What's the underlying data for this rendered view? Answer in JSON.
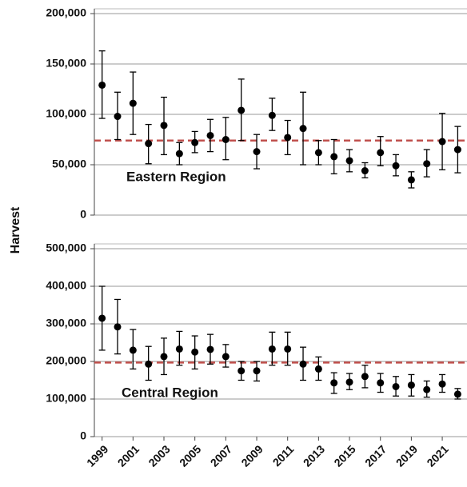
{
  "chart_data": [
    {
      "type": "scatter",
      "ylabel": "Harvest",
      "annotation": "Eastern Region",
      "x": [
        1999,
        2000,
        2001,
        2002,
        2003,
        2004,
        2005,
        2006,
        2007,
        2008,
        2009,
        2010,
        2011,
        2012,
        2013,
        2014,
        2015,
        2016,
        2017,
        2018,
        2019,
        2020,
        2021,
        2022
      ],
      "xlim": [
        1998.5,
        2022.6
      ],
      "series": [
        {
          "color": "#000000",
          "values": [
            129000,
            98000,
            111000,
            71000,
            89000,
            61000,
            72000,
            79000,
            75000,
            104000,
            63000,
            99000,
            77000,
            86000,
            62000,
            58000,
            54000,
            44000,
            62000,
            49000,
            35000,
            51000,
            73000,
            65000
          ],
          "lower": [
            96000,
            75000,
            80000,
            51000,
            60000,
            50000,
            62000,
            63000,
            55000,
            74000,
            46000,
            84000,
            60000,
            50000,
            50000,
            41000,
            43000,
            37000,
            49000,
            39000,
            27000,
            38000,
            45000,
            42000
          ],
          "upper": [
            163000,
            122000,
            142000,
            90000,
            117000,
            72000,
            83000,
            95000,
            97000,
            135000,
            80000,
            116000,
            94000,
            122000,
            74000,
            75000,
            65000,
            52000,
            78000,
            60000,
            43000,
            65000,
            101000,
            88000
          ]
        }
      ],
      "reference_line": {
        "value": 74000,
        "color": "#c0504d",
        "dashed": true
      },
      "ylim": [
        0,
        200000
      ],
      "yticks": [
        0,
        {
          "value": 50000,
          "label": "50,000"
        },
        {
          "value": 100000,
          "label": "100,000"
        },
        {
          "value": 150000,
          "label": "150,000"
        },
        {
          "value": 200000,
          "label": "200,000"
        }
      ],
      "grid": true
    },
    {
      "type": "scatter",
      "annotation": "Central Region",
      "x": [
        1999,
        2000,
        2001,
        2002,
        2003,
        2004,
        2005,
        2006,
        2007,
        2008,
        2009,
        2010,
        2011,
        2012,
        2013,
        2014,
        2015,
        2016,
        2017,
        2018,
        2019,
        2020,
        2021,
        2022
      ],
      "xlim": [
        1998.5,
        2022.6
      ],
      "xticks": [
        1999,
        2001,
        2003,
        2005,
        2007,
        2009,
        2011,
        2013,
        2015,
        2017,
        2019,
        2021
      ],
      "series": [
        {
          "color": "#000000",
          "values": [
            315000,
            292000,
            230000,
            193000,
            213000,
            233000,
            225000,
            232000,
            213000,
            175000,
            175000,
            233000,
            233000,
            193000,
            180000,
            143000,
            145000,
            160000,
            143000,
            133000,
            137000,
            125000,
            140000,
            113000
          ],
          "lower": [
            230000,
            220000,
            180000,
            150000,
            165000,
            190000,
            180000,
            193000,
            185000,
            150000,
            148000,
            190000,
            190000,
            150000,
            150000,
            115000,
            125000,
            130000,
            118000,
            108000,
            108000,
            105000,
            118000,
            100000
          ],
          "upper": [
            400000,
            365000,
            285000,
            240000,
            262000,
            280000,
            268000,
            272000,
            245000,
            200000,
            200000,
            278000,
            278000,
            238000,
            212000,
            170000,
            168000,
            190000,
            168000,
            160000,
            165000,
            148000,
            165000,
            128000
          ]
        }
      ],
      "reference_line": {
        "value": 197000,
        "color": "#c0504d",
        "dashed": true
      },
      "ylim": [
        0,
        500000
      ],
      "yticks": [
        0,
        {
          "value": 100000,
          "label": "100,000"
        },
        {
          "value": 200000,
          "label": "200,000"
        },
        {
          "value": 300000,
          "label": "300,000"
        },
        {
          "value": 400000,
          "label": "400,000"
        },
        {
          "value": 500000,
          "label": "500,000"
        }
      ],
      "grid": true
    }
  ]
}
